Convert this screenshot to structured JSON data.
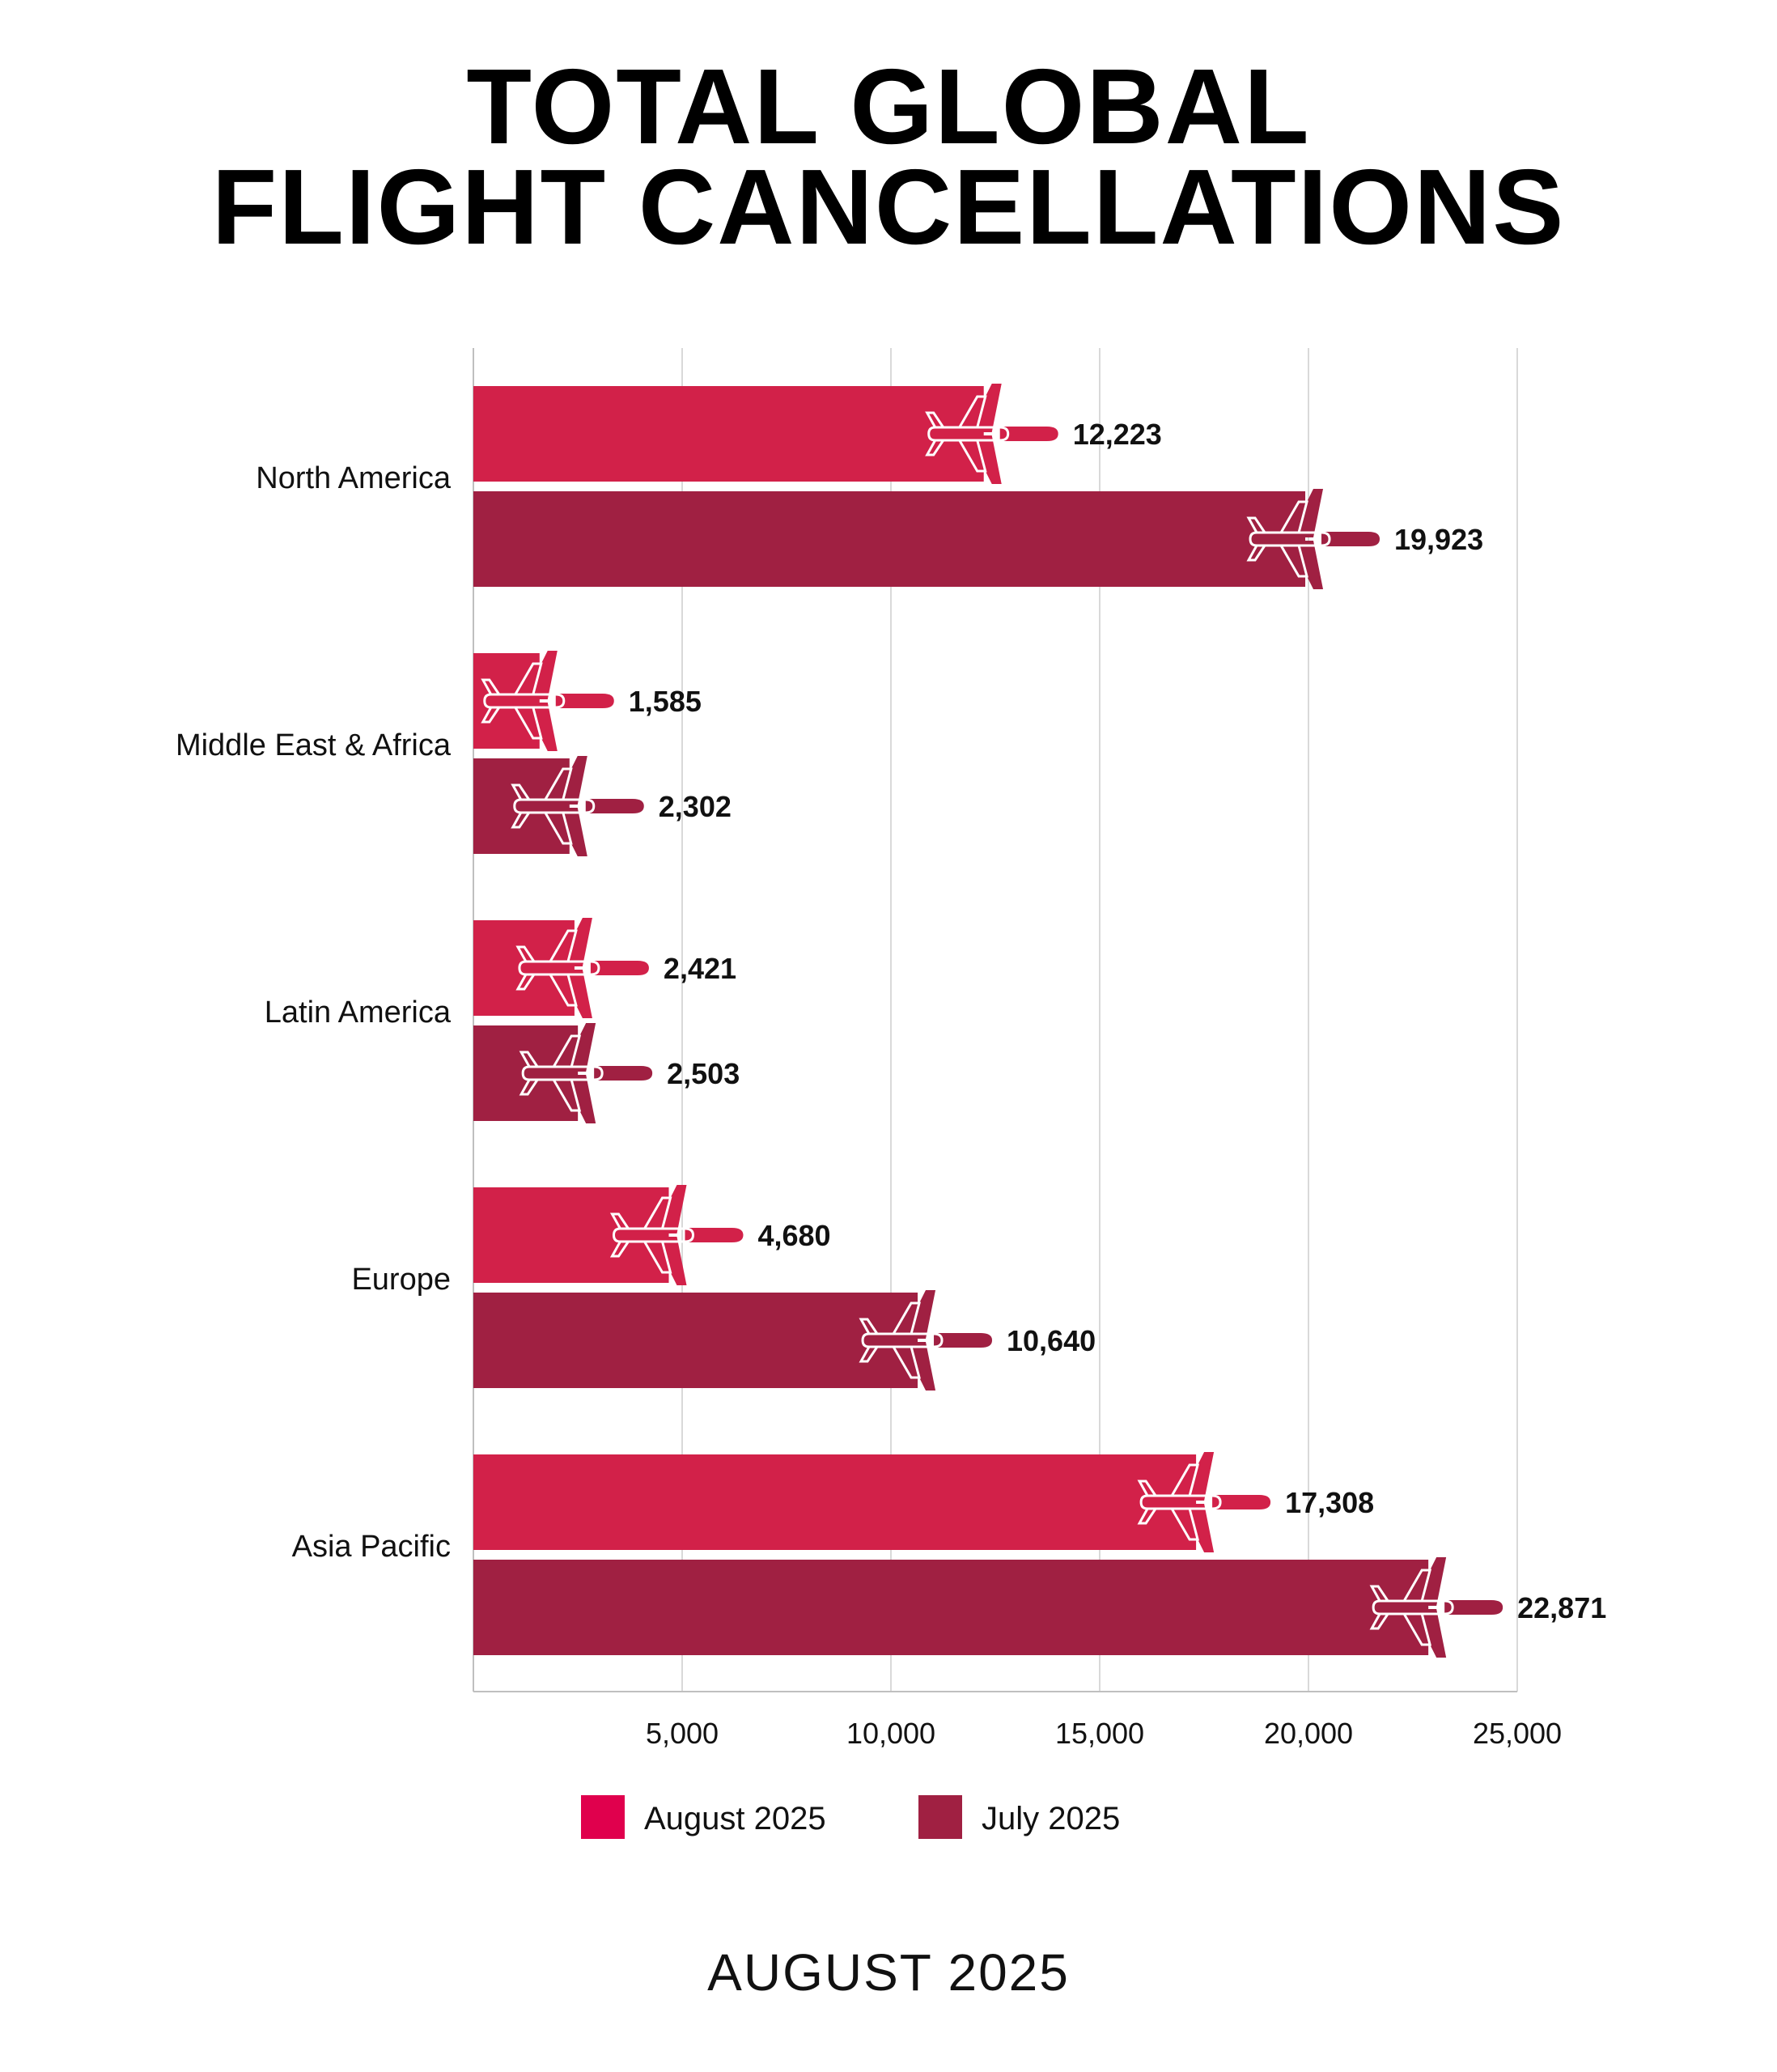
{
  "title_lines": [
    "TOTAL GLOBAL",
    "FLIGHT CANCELLATIONS"
  ],
  "footer": "AUGUST 2025",
  "colors": {
    "august": "#D22149",
    "july": "#A02042",
    "grid": "#D9D9D9",
    "legend_august": "#E0004D"
  },
  "icon": "airplane-icon",
  "chart_data": {
    "type": "bar",
    "orientation": "horizontal",
    "categories": [
      "North America",
      "Middle East & Africa",
      "Latin America",
      "Europe",
      "Asia Pacific"
    ],
    "series": [
      {
        "name": "August 2025",
        "values": [
          12223,
          1585,
          2421,
          4680,
          17308
        ],
        "labels": [
          "12,223",
          "1,585",
          "2,421",
          "4,680",
          "17,308"
        ]
      },
      {
        "name": "July 2025",
        "values": [
          19923,
          2302,
          2503,
          10640,
          22871
        ],
        "labels": [
          "19,923",
          "2,302",
          "2,503",
          "10,640",
          "22,871"
        ]
      }
    ],
    "xlim": [
      0,
      25000
    ],
    "xticks": [
      5000,
      10000,
      15000,
      20000,
      25000
    ],
    "xtick_labels": [
      "5,000",
      "10,000",
      "15,000",
      "20,000",
      "25,000"
    ],
    "grid": true,
    "legend_position": "bottom"
  }
}
